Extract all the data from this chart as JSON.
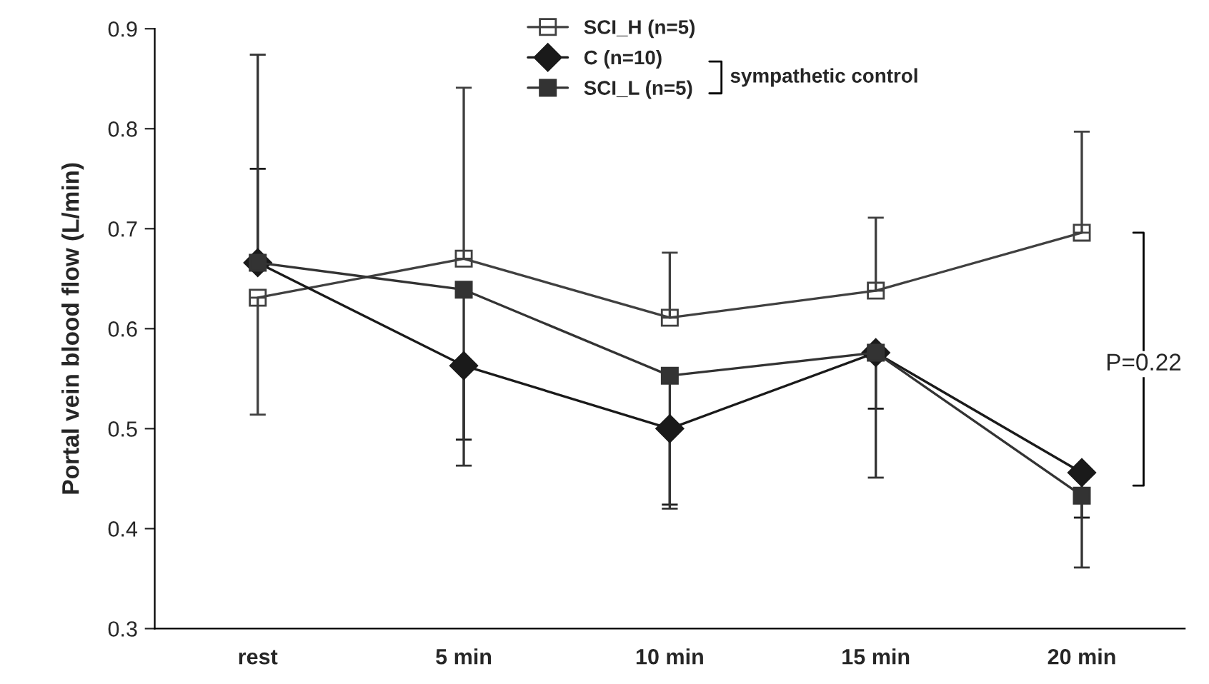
{
  "chart_data": {
    "type": "line",
    "ylabel": "Portal vein blood flow (L/min)",
    "categories": [
      "rest",
      "5 min",
      "10 min",
      "15 min",
      "20 min"
    ],
    "series": [
      {
        "name": "SCI_H (n=5)",
        "color": "#404040",
        "marker": "square",
        "values": [
          0.631,
          0.67,
          0.611,
          0.638,
          0.696
        ],
        "errors": [
          [
            0.514,
            0.631
          ],
          [
            0.67,
            0.841
          ],
          [
            0.611,
            0.676
          ],
          [
            0.638,
            0.711
          ],
          [
            0.696,
            0.797
          ]
        ]
      },
      {
        "name": "C (n=10)",
        "color": "#1a1a1a",
        "marker": "diamond",
        "values": [
          0.666,
          0.563,
          0.5,
          0.576,
          0.456
        ],
        "errors": [
          [
            0.666,
            0.76
          ],
          [
            0.489,
            0.563
          ],
          [
            0.424,
            0.5
          ],
          [
            0.52,
            0.576
          ],
          [
            0.411,
            0.456
          ]
        ]
      },
      {
        "name": "SCI_L (n=5)",
        "color": "#333333",
        "marker": "square",
        "values": [
          0.666,
          0.639,
          0.553,
          0.576,
          0.433
        ],
        "errors": [
          [
            0.666,
            0.874
          ],
          [
            0.463,
            0.639
          ],
          [
            0.42,
            0.553
          ],
          [
            0.451,
            0.576
          ],
          [
            0.361,
            0.433
          ]
        ]
      }
    ],
    "ylim": [
      0.3,
      0.9
    ],
    "yticks": [
      0.3,
      0.4,
      0.5,
      0.6,
      0.7,
      0.8,
      0.9
    ],
    "grid": false,
    "legend": "top",
    "line_style": "solid",
    "annotations": [
      "sympathetic control",
      "P=0.22"
    ]
  }
}
